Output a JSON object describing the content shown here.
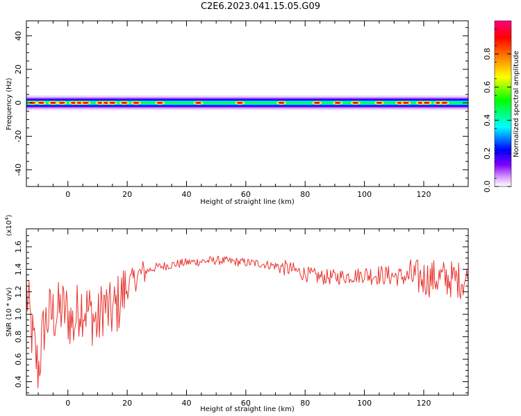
{
  "title": "C2E6.2023.041.15.05.G09",
  "chart_data": [
    {
      "type": "heatmap",
      "xlabel": "Height of straight line (km)",
      "ylabel": "Frequency (Hz)",
      "xlim": [
        -14,
        135
      ],
      "ylim": [
        -50,
        49
      ],
      "xticks": [
        0,
        20,
        40,
        60,
        80,
        100,
        120
      ],
      "yticks": [
        -40,
        -20,
        0,
        20,
        40
      ],
      "grid": false,
      "signal_band_hz": [
        -4,
        4
      ],
      "colorbar": {
        "label": "Normalized spectral amplitude",
        "range": [
          0.0,
          1.0
        ],
        "ticks": [
          0.0,
          0.2,
          0.4,
          0.6,
          0.8
        ],
        "colors": [
          "#ffffff",
          "#e0a8ff",
          "#8000ff",
          "#0000ff",
          "#00ffff",
          "#00ff00",
          "#ffff00",
          "#ff8000",
          "#ff0000",
          "#ff0080"
        ]
      },
      "peak_heights_km": [
        -12,
        -9,
        -5,
        -2,
        2,
        4,
        6,
        11,
        13,
        15,
        19,
        23,
        31,
        44,
        58,
        72,
        84,
        91,
        97,
        105,
        112,
        114,
        119,
        121,
        125,
        127
      ]
    },
    {
      "type": "line",
      "xlabel": "Height of straight line (km)",
      "ylabel": "SNR (10 * v/v)",
      "scale_label": "(x10",
      "scale_exp": "4",
      "scale_close": ")",
      "xlim": [
        -14,
        135
      ],
      "ylim": [
        0.28,
        1.76
      ],
      "xticks": [
        0,
        20,
        40,
        60,
        80,
        100,
        120
      ],
      "yticks": [
        0.4,
        0.6,
        0.8,
        1.0,
        1.2,
        1.4,
        1.6
      ],
      "ytick_labels": [
        "0.4",
        "0.6",
        "0.8",
        "1.0",
        "1.2",
        "1.4",
        "1.6"
      ],
      "grid": false,
      "color": "#e8322d",
      "x": [
        -14,
        -12,
        -10,
        -8,
        -6,
        -4,
        -2,
        0,
        2,
        4,
        6,
        8,
        10,
        12,
        14,
        16,
        18,
        20,
        22,
        24,
        26,
        28,
        30,
        35,
        40,
        45,
        50,
        55,
        60,
        65,
        70,
        75,
        80,
        85,
        90,
        95,
        100,
        105,
        110,
        115,
        120,
        125,
        130,
        135
      ],
      "y": [
        1.2,
        0.8,
        0.5,
        0.9,
        1.0,
        1.0,
        1.05,
        1.0,
        0.9,
        1.1,
        1.05,
        1.0,
        0.9,
        1.1,
        1.0,
        1.05,
        1.15,
        1.25,
        1.3,
        1.35,
        1.38,
        1.4,
        1.42,
        1.44,
        1.46,
        1.47,
        1.48,
        1.47,
        1.46,
        1.45,
        1.43,
        1.4,
        1.36,
        1.33,
        1.33,
        1.34,
        1.35,
        1.35,
        1.34,
        1.33,
        1.32,
        1.32,
        1.31,
        1.3
      ]
    }
  ]
}
